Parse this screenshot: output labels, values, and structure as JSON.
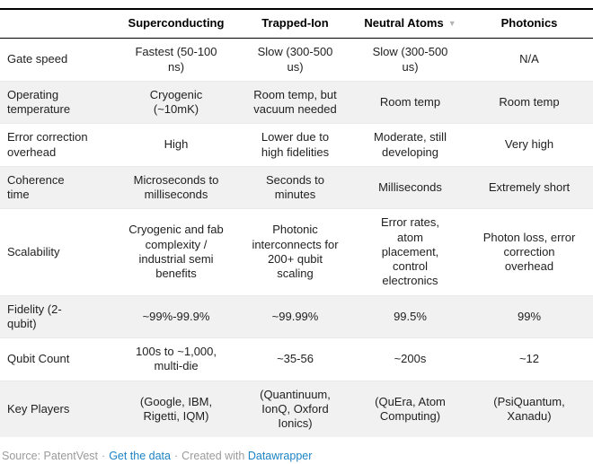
{
  "table": {
    "columns": [
      "",
      "Superconducting",
      "Trapped-Ion",
      "Neutral Atoms",
      "Photonics"
    ],
    "sort_indicator": {
      "column": "Neutral Atoms",
      "glyph": "▼"
    },
    "rows": [
      {
        "label": "Gate speed",
        "cells": [
          "Fastest (50-100 ns)",
          "Slow (300-500 us)",
          "Slow (300-500 us)",
          "N/A"
        ]
      },
      {
        "label": "Operating temperature",
        "cells": [
          "Cryogenic (~10mK)",
          "Room temp, but vacuum needed",
          "Room temp",
          "Room temp"
        ]
      },
      {
        "label": "Error correction overhead",
        "cells": [
          "High",
          "Lower due to high fidelities",
          "Moderate, still developing",
          "Very high"
        ]
      },
      {
        "label": "Coherence time",
        "cells": [
          "Microseconds to milliseconds",
          "Seconds to minutes",
          "Milliseconds",
          "Extremely short"
        ]
      },
      {
        "label": "Scalability",
        "cells": [
          "Cryogenic and fab complexity / industrial semi benefits",
          "Photonic interconnects for 200+ qubit scaling",
          "Error rates, atom placement, control electronics",
          "Photon loss, error correction overhead"
        ]
      },
      {
        "label": "Fidelity (2-qubit)",
        "cells": [
          "~99%-99.9%",
          "~99.99%",
          "99.5%",
          "99%"
        ]
      },
      {
        "label": "Qubit Count",
        "cells": [
          "100s to ~1,000, multi-die",
          "~35-56",
          "~200s",
          "~12"
        ]
      },
      {
        "label": "Key Players",
        "cells": [
          "(Google, IBM, Rigetti, IQM)",
          "(Quantinuum, IonQ, Oxford Ionics)",
          "(QuEra, Atom Computing)",
          "(PsiQuantum, Xanadu)"
        ]
      }
    ]
  },
  "footer": {
    "source_text": "Source: PatentVest",
    "separator": "·",
    "get_data_link": "Get the data",
    "created_with_text": "Created with",
    "datawrapper_link": "Datawrapper"
  },
  "colors": {
    "stripe_gray": "#f1f1f1",
    "rule_black": "#000000",
    "link_blue": "#1d83c4",
    "footer_gray": "#9b9b9b"
  }
}
